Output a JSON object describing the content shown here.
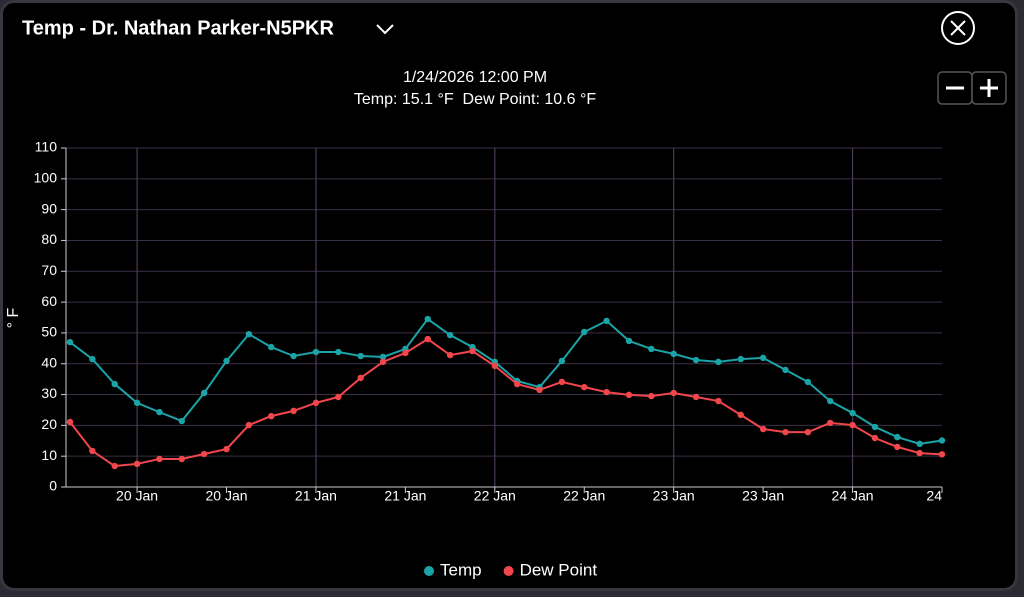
{
  "chart_data": {
    "type": "line",
    "title": "Temp - Dr. Nathan Parker-N5PKR",
    "subtitle": "1/24/2026 12:00 PM",
    "annotation": "Temp: 15.1 °F  Dew Point: 10.6 °F",
    "y_label": "° F",
    "categories": [
      null,
      null,
      null,
      "20 Jan",
      null,
      null,
      null,
      "20 Jan",
      null,
      null,
      null,
      "21 Jan",
      null,
      null,
      null,
      "21 Jan",
      null,
      null,
      null,
      "22 Jan",
      null,
      null,
      null,
      "22 Jan",
      null,
      null,
      null,
      "23 Jan",
      null,
      null,
      null,
      "23 Jan",
      null,
      null,
      null,
      "24 Jan",
      null,
      null,
      null,
      "24"
    ],
    "series": [
      {
        "name": "Temp",
        "color": "#1ba4a8",
        "values": [
          47,
          41.5,
          33.4,
          27.3,
          24.3,
          21.4,
          30.5,
          40.9,
          49.6,
          45.4,
          42.5,
          43.8,
          43.8,
          42.5,
          42.2,
          44.8,
          54.5,
          49.3,
          45.4,
          40.6,
          34.4,
          32.4,
          40.9,
          50.3,
          53.9,
          47.4,
          44.8,
          43.2,
          41.2,
          40.6,
          41.5,
          41.9,
          38,
          34.1,
          27.9,
          24,
          19.5,
          16.2,
          14,
          15.1
        ]
      },
      {
        "name": "Dew Point",
        "color": "#f2464d",
        "values": [
          21.1,
          11.7,
          6.8,
          7.5,
          9.1,
          9.1,
          10.7,
          12.3,
          20.1,
          23,
          24.7,
          27.3,
          29.2,
          35.4,
          40.6,
          43.5,
          48,
          42.8,
          44.1,
          39.3,
          33.4,
          31.5,
          34.1,
          32.4,
          30.8,
          29.9,
          29.5,
          30.5,
          29.2,
          27.9,
          23.4,
          18.8,
          17.8,
          17.8,
          20.8,
          20.1,
          15.9,
          13,
          11,
          10.6
        ]
      }
    ],
    "ylim": [
      0,
      110
    ],
    "yticks": [
      0,
      10,
      20,
      30,
      40,
      50,
      60,
      70,
      80,
      90,
      100,
      110
    ],
    "grid": true
  }
}
